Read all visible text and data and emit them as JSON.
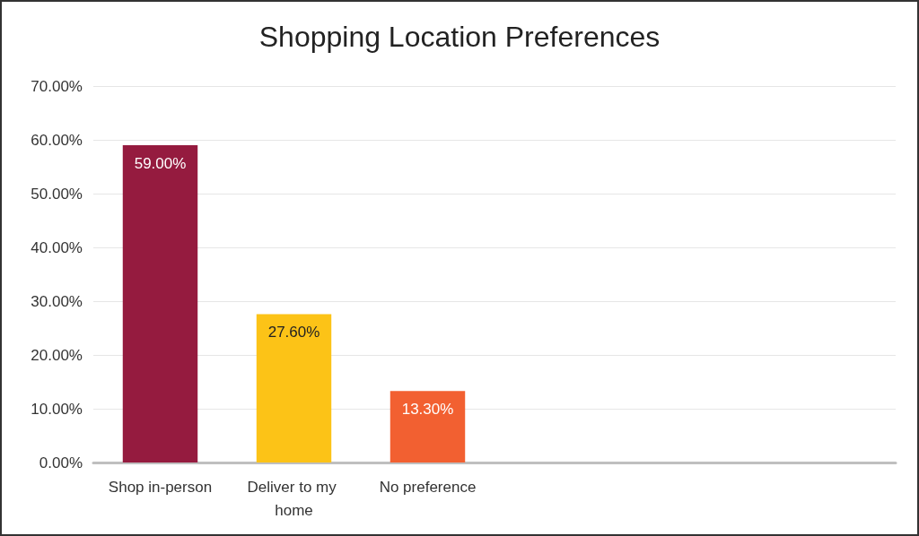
{
  "chart_data": {
    "type": "bar",
    "title": "Shopping Location Preferences",
    "categories": [
      "Shop in-person",
      "Deliver to my home",
      "No preference",
      null,
      null,
      null
    ],
    "values": [
      59,
      27.6,
      13.3,
      null,
      null,
      null
    ],
    "colors": [
      "#951b3f",
      "#fcc317",
      "#f26031",
      null,
      null,
      null
    ],
    "value_labels": [
      "59.00%",
      "27.60%",
      "13.30%",
      null,
      null,
      null
    ],
    "ylim": [
      0,
      70
    ],
    "yticks": [
      {
        "value": 0,
        "label": "0.00%"
      },
      {
        "value": 10,
        "label": "10.00%"
      },
      {
        "value": 20,
        "label": "20.00%"
      },
      {
        "value": 30,
        "label": "30.00%"
      },
      {
        "value": 40,
        "label": "40.00%"
      },
      {
        "value": 50,
        "label": "50.00%"
      },
      {
        "value": 60,
        "label": "60.00%"
      },
      {
        "value": 70,
        "label": "70.00%"
      }
    ],
    "grid": true
  }
}
